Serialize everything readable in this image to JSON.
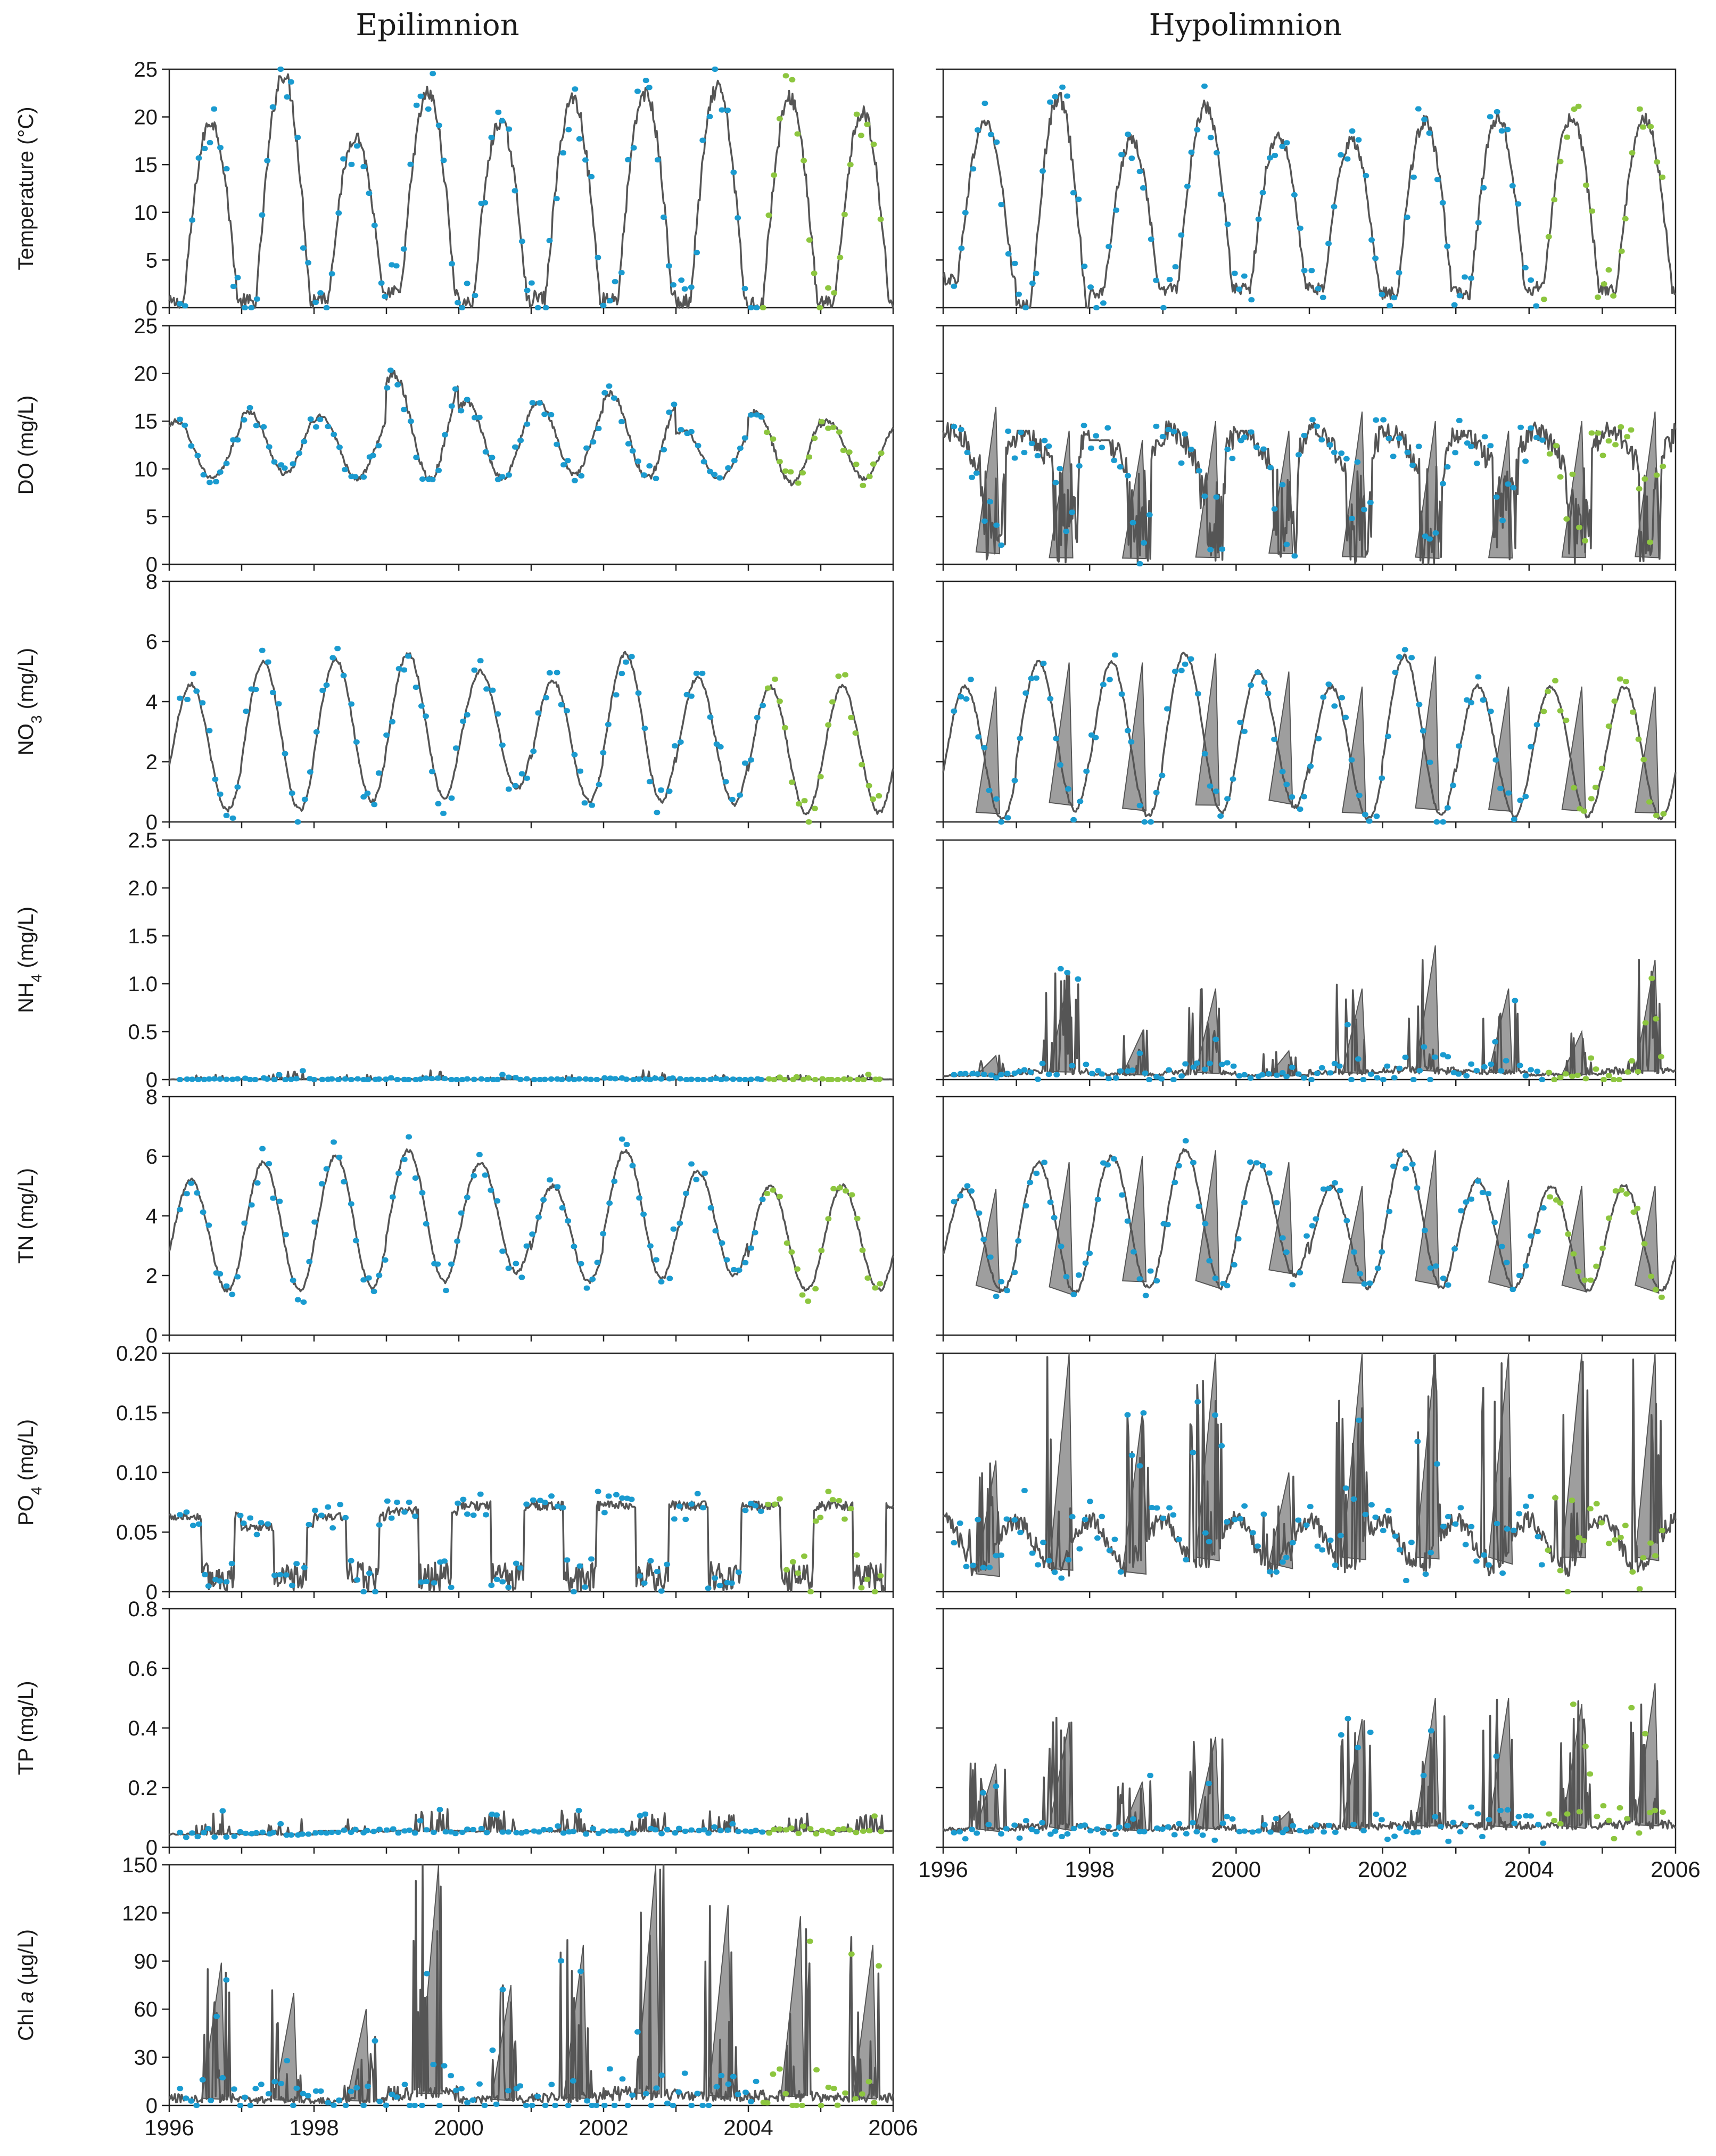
{
  "columns": [
    "Epilimnion",
    "Hypolimnion"
  ],
  "x_ticks": [
    "1996",
    "1998",
    "2000",
    "2002",
    "2004",
    "2006"
  ],
  "colors": {
    "model": "#555555",
    "band": "#9e9e9e",
    "calibration": "#1a9bd0",
    "validation": "#8dc63f",
    "axis": "#222222"
  },
  "chart_data": [
    {
      "type": "line",
      "variable": "Temperature",
      "ylabel": "Temperature (°C)",
      "ylim": [
        0,
        25
      ],
      "ticks": [
        "0",
        "5",
        "10",
        "15",
        "20",
        "25"
      ],
      "xlim": [
        1996,
        2006
      ],
      "calibration_period": [
        1996,
        2004
      ],
      "validation_period": [
        2004,
        2006
      ],
      "series": [
        {
          "name": "Epilimnion",
          "seasonal_min": [
            0.5,
            0.5,
            1,
            1.5,
            0.5,
            1,
            1,
            0.5,
            0.5,
            0.5
          ],
          "seasonal_max": [
            19.5,
            24.5,
            18,
            22.5,
            19.5,
            22,
            22.5,
            23,
            22,
            20.5
          ],
          "band": false
        },
        {
          "name": "Hypolimnion",
          "seasonal_min": [
            3,
            0,
            1.5,
            2,
            2,
            2,
            1.5,
            1.5,
            2,
            2
          ],
          "seasonal_max": [
            19.5,
            22,
            17.5,
            21,
            18,
            17.5,
            19.5,
            20,
            20,
            20
          ],
          "band": false
        }
      ]
    },
    {
      "type": "line",
      "variable": "DO",
      "ylabel": "DO (mg/L)",
      "ylim": [
        0,
        25
      ],
      "ticks": [
        "0",
        "5",
        "10",
        "15",
        "20",
        "25"
      ],
      "xlim": [
        1996,
        2006
      ],
      "series": [
        {
          "name": "Epilimnion",
          "seasonal_min": [
            9,
            9.5,
            9,
            9,
            9,
            9.5,
            9,
            9,
            8.5,
            9
          ],
          "seasonal_max": [
            15,
            16,
            15.5,
            20,
            17,
            17,
            18,
            14,
            16,
            15
          ],
          "band": false
        },
        {
          "name": "Hypolimnion",
          "seasonal_min": [
            0.5,
            0,
            0,
            0,
            0.5,
            0,
            0,
            0,
            0,
            0
          ],
          "seasonal_max": [
            16.5,
            14,
            13,
            15,
            14,
            16,
            15,
            14,
            15,
            16
          ],
          "band": true
        }
      ]
    },
    {
      "type": "line",
      "variable": "NO3",
      "ylabel": "NO3 (mg/L)",
      "ylim": [
        0,
        8
      ],
      "ticks": [
        "0",
        "2",
        "4",
        "6",
        "8"
      ],
      "xlim": [
        1996,
        2006
      ],
      "series": [
        {
          "name": "Epilimnion",
          "seasonal_min": [
            0.4,
            0.4,
            0.7,
            0.8,
            1.1,
            0.7,
            0.7,
            0.6,
            0.3,
            0.3
          ],
          "seasonal_max": [
            4.6,
            5.3,
            5.4,
            5.6,
            5.0,
            4.7,
            5.6,
            4.8,
            4.5,
            4.5
          ],
          "band": false
        },
        {
          "name": "Hypolimnion",
          "seasonal_min": [
            0.1,
            0.4,
            0.2,
            0.3,
            0.5,
            0.1,
            0.2,
            0.2,
            0.2,
            0.1
          ],
          "seasonal_max": [
            4.5,
            5.3,
            5.3,
            5.6,
            5.0,
            4.5,
            5.5,
            4.5,
            4.5,
            4.5
          ],
          "band": true
        }
      ]
    },
    {
      "type": "line",
      "variable": "NH4",
      "ylabel": "NH4 (mg/L)",
      "ylim": [
        0,
        2.5
      ],
      "ticks": [
        "0",
        "0.5",
        "1.0",
        "1.5",
        "2.0",
        "2.5"
      ],
      "xlim": [
        1996,
        2006
      ],
      "series": [
        {
          "name": "Epilimnion",
          "seasonal_min": [
            0,
            0,
            0,
            0,
            0,
            0,
            0,
            0,
            0,
            0
          ],
          "seasonal_max": [
            0.05,
            0.1,
            0.05,
            0.1,
            0.05,
            0.05,
            0.1,
            0.05,
            0.05,
            0.05
          ],
          "band": false
        },
        {
          "name": "Hypolimnion",
          "seasonal_min": [
            0.03,
            0.03,
            0.03,
            0.03,
            0.03,
            0.03,
            0.03,
            0.03,
            0.03,
            0.03
          ],
          "seasonal_max": [
            0.25,
            1.1,
            0.5,
            0.95,
            0.3,
            0.95,
            1.4,
            0.95,
            0.5,
            1.25
          ],
          "band": true
        }
      ]
    },
    {
      "type": "line",
      "variable": "TN",
      "ylabel": "TN (mg/L)",
      "ylim": [
        0,
        8
      ],
      "ticks": [
        "0",
        "2",
        "4",
        "6",
        "8"
      ],
      "xlim": [
        1996,
        2006
      ],
      "series": [
        {
          "name": "Epilimnion",
          "seasonal_min": [
            1.5,
            1.5,
            1.6,
            1.8,
            2.1,
            1.8,
            1.9,
            2.0,
            1.5,
            1.5
          ],
          "seasonal_max": [
            5.2,
            5.8,
            6.0,
            6.2,
            5.8,
            5.0,
            6.2,
            5.5,
            5.0,
            5.0
          ],
          "band": false
        },
        {
          "name": "Hypolimnion",
          "seasonal_min": [
            1.5,
            1.4,
            1.6,
            1.6,
            2.0,
            1.6,
            1.6,
            1.6,
            1.5,
            1.5
          ],
          "seasonal_max": [
            4.9,
            5.8,
            6.0,
            6.2,
            5.8,
            5.0,
            6.2,
            5.2,
            5.0,
            5.0
          ],
          "band": true
        }
      ]
    },
    {
      "type": "line",
      "variable": "PO4",
      "ylabel": "PO4 (mg/L)",
      "ylim": [
        0,
        0.2
      ],
      "ticks": [
        "0",
        "0.05",
        "0.10",
        "0.15",
        "0.20"
      ],
      "xlim": [
        1996,
        2006
      ],
      "series": [
        {
          "name": "Epilimnion",
          "seasonal_min": [
            0,
            0,
            0,
            0,
            0,
            0,
            0,
            0,
            0,
            0
          ],
          "seasonal_max": [
            0.07,
            0.06,
            0.07,
            0.075,
            0.08,
            0.08,
            0.08,
            0.08,
            0.08,
            0.08
          ],
          "band": false
        },
        {
          "name": "Hypolimnion",
          "seasonal_min": [
            0.01,
            0.01,
            0.01,
            0.02,
            0.02,
            0.02,
            0.02,
            0.02,
            0.02,
            0.02
          ],
          "seasonal_max": [
            0.11,
            0.2,
            0.15,
            0.2,
            0.1,
            0.2,
            0.2,
            0.2,
            0.2,
            0.2
          ],
          "band": true
        }
      ]
    },
    {
      "type": "line",
      "variable": "TP",
      "ylabel": "TP (mg/L)",
      "ylim": [
        0,
        0.8
      ],
      "ticks": [
        "0",
        "0.2",
        "0.4",
        "0.6",
        "0.8"
      ],
      "xlim": [
        1996,
        2006
      ],
      "series": [
        {
          "name": "Epilimnion",
          "seasonal_min": [
            0.04,
            0.04,
            0.05,
            0.05,
            0.05,
            0.05,
            0.05,
            0.05,
            0.05,
            0.05
          ],
          "seasonal_max": [
            0.12,
            0.1,
            0.12,
            0.14,
            0.12,
            0.12,
            0.12,
            0.12,
            0.12,
            0.12
          ],
          "band": false
        },
        {
          "name": "Hypolimnion",
          "seasonal_min": [
            0.05,
            0.05,
            0.05,
            0.05,
            0.05,
            0.05,
            0.05,
            0.05,
            0.05,
            0.05
          ],
          "seasonal_max": [
            0.28,
            0.42,
            0.22,
            0.37,
            0.12,
            0.43,
            0.5,
            0.5,
            0.48,
            0.55
          ],
          "band": true
        }
      ]
    },
    {
      "type": "line",
      "variable": "Chl a",
      "ylabel": "Chl a (µg/L)",
      "ylim": [
        0,
        150
      ],
      "ticks": [
        "0",
        "30",
        "60",
        "90",
        "120",
        "150"
      ],
      "xlim": [
        1996,
        2006
      ],
      "series": [
        {
          "name": "Epilimnion",
          "seasonal_min": [
            0,
            0,
            0,
            0,
            0,
            0,
            0,
            0,
            0,
            0
          ],
          "seasonal_max": [
            89,
            70,
            60,
            150,
            75,
            100,
            155,
            125,
            118,
            100
          ],
          "band": true
        }
      ]
    }
  ]
}
